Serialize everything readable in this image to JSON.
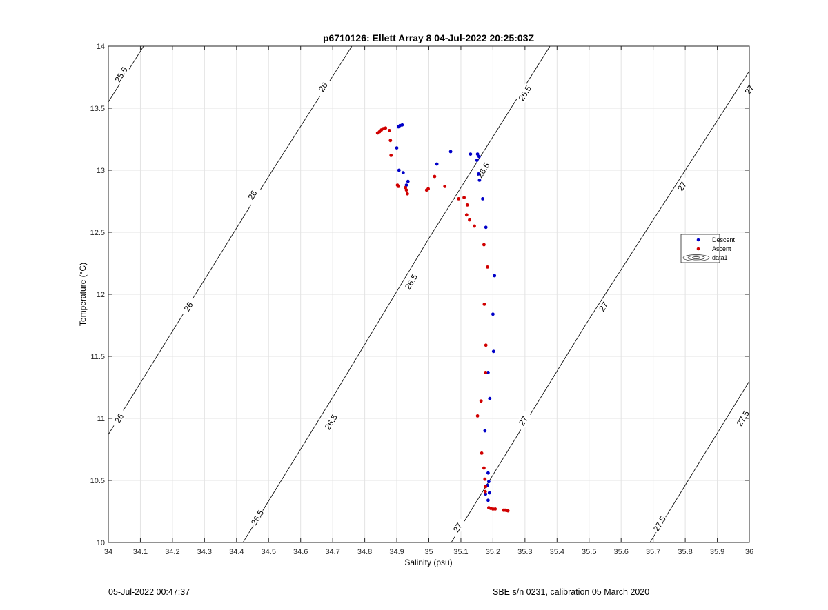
{
  "chart_data": {
    "type": "scatter",
    "title": "p6710126: Ellett Array 8 04-Jul-2022 20:25:03Z",
    "xlabel": "Salinity (psu)",
    "ylabel": "Temperature (°C)",
    "xlim": [
      34,
      36
    ],
    "ylim": [
      10,
      14
    ],
    "grid": true,
    "legend_position": "right",
    "x_ticks": [
      "34",
      "34.1",
      "34.2",
      "34.3",
      "34.4",
      "34.5",
      "34.6",
      "34.7",
      "34.8",
      "34.9",
      "35",
      "35.1",
      "35.2",
      "35.3",
      "35.4",
      "35.5",
      "35.6",
      "35.7",
      "35.8",
      "35.9",
      "36"
    ],
    "y_ticks": [
      "10",
      "10.5",
      "11",
      "11.5",
      "12",
      "12.5",
      "13",
      "13.5",
      "14"
    ],
    "series": [
      {
        "name": "Descent",
        "color": "#0000c8",
        "points": [
          [
            34.905,
            13.35
          ],
          [
            34.91,
            13.36
          ],
          [
            34.917,
            13.365
          ],
          [
            34.9,
            13.18
          ],
          [
            34.907,
            13.0
          ],
          [
            34.92,
            12.98
          ],
          [
            34.935,
            12.91
          ],
          [
            34.93,
            12.88
          ],
          [
            35.068,
            13.15
          ],
          [
            35.025,
            13.05
          ],
          [
            35.13,
            13.13
          ],
          [
            35.152,
            13.13
          ],
          [
            35.157,
            13.11
          ],
          [
            35.15,
            13.08
          ],
          [
            35.155,
            12.97
          ],
          [
            35.158,
            12.92
          ],
          [
            35.168,
            12.77
          ],
          [
            35.178,
            12.54
          ],
          [
            35.205,
            12.15
          ],
          [
            35.2,
            11.84
          ],
          [
            35.202,
            11.54
          ],
          [
            35.185,
            11.37
          ],
          [
            35.19,
            11.16
          ],
          [
            35.175,
            10.9
          ],
          [
            35.185,
            10.56
          ],
          [
            35.187,
            10.49
          ],
          [
            35.183,
            10.46
          ],
          [
            35.189,
            10.4
          ],
          [
            35.177,
            10.39
          ],
          [
            35.185,
            10.34
          ]
        ]
      },
      {
        "name": "Ascent",
        "color": "#d00000",
        "points": [
          [
            34.84,
            13.3
          ],
          [
            34.846,
            13.31
          ],
          [
            34.852,
            13.325
          ],
          [
            34.858,
            13.335
          ],
          [
            34.865,
            13.34
          ],
          [
            34.877,
            13.32
          ],
          [
            34.88,
            13.24
          ],
          [
            34.882,
            13.12
          ],
          [
            34.902,
            12.88
          ],
          [
            34.905,
            12.87
          ],
          [
            34.927,
            12.86
          ],
          [
            34.93,
            12.84
          ],
          [
            34.933,
            12.81
          ],
          [
            34.993,
            12.84
          ],
          [
            34.998,
            12.85
          ],
          [
            35.018,
            12.95
          ],
          [
            35.05,
            12.87
          ],
          [
            35.093,
            12.77
          ],
          [
            35.11,
            12.78
          ],
          [
            35.12,
            12.72
          ],
          [
            35.118,
            12.64
          ],
          [
            35.127,
            12.6
          ],
          [
            35.142,
            12.55
          ],
          [
            35.172,
            12.4
          ],
          [
            35.183,
            12.22
          ],
          [
            35.173,
            11.92
          ],
          [
            35.178,
            11.59
          ],
          [
            35.177,
            11.37
          ],
          [
            35.163,
            11.14
          ],
          [
            35.152,
            11.02
          ],
          [
            35.165,
            10.72
          ],
          [
            35.172,
            10.6
          ],
          [
            35.175,
            10.51
          ],
          [
            35.177,
            10.45
          ],
          [
            35.176,
            10.41
          ],
          [
            35.187,
            10.28
          ],
          [
            35.193,
            10.275
          ],
          [
            35.2,
            10.27
          ],
          [
            35.207,
            10.27
          ],
          [
            35.233,
            10.26
          ],
          [
            35.238,
            10.26
          ],
          [
            35.242,
            10.258
          ],
          [
            35.247,
            10.255
          ]
        ]
      }
    ],
    "contours": [
      {
        "label": "25.5",
        "points": [
          [
            34.0,
            13.55
          ],
          [
            34.11,
            14.0
          ]
        ],
        "label_positions": [
          [
            34.04,
            13.77
          ]
        ]
      },
      {
        "label": "26",
        "points": [
          [
            34.0,
            10.87
          ],
          [
            34.5,
            12.95
          ],
          [
            34.76,
            14.0
          ]
        ],
        "label_positions": [
          [
            34.034,
            11.0
          ],
          [
            34.25,
            11.9
          ],
          [
            34.45,
            12.8
          ],
          [
            34.67,
            13.67
          ]
        ]
      },
      {
        "label": "26.5",
        "points": [
          [
            34.42,
            10.0
          ],
          [
            34.7,
            11.17
          ],
          [
            35.0,
            12.45
          ],
          [
            35.378,
            14.0
          ]
        ],
        "label_positions": [
          [
            34.465,
            10.2
          ],
          [
            34.695,
            10.97
          ],
          [
            34.945,
            12.1
          ],
          [
            35.17,
            13.0
          ],
          [
            35.3,
            13.62
          ]
        ]
      },
      {
        "label": "27",
        "points": [
          [
            35.07,
            10.0
          ],
          [
            35.5,
            11.8
          ],
          [
            36.0,
            13.8
          ]
        ],
        "label_positions": [
          [
            35.09,
            10.12
          ],
          [
            35.295,
            10.98
          ],
          [
            35.545,
            11.9
          ],
          [
            35.79,
            12.87
          ],
          [
            36.0,
            13.65
          ]
        ]
      },
      {
        "label": "27.5",
        "points": [
          [
            35.69,
            10.0
          ],
          [
            36.0,
            11.3
          ]
        ],
        "label_positions": [
          [
            35.72,
            10.15
          ],
          [
            35.98,
            11.0
          ]
        ]
      }
    ],
    "legend": [
      {
        "label": "Descent",
        "marker": "dot",
        "color": "#0000c8"
      },
      {
        "label": "Ascent",
        "marker": "dot",
        "color": "#d00000"
      },
      {
        "label": "data1",
        "marker": "contour"
      }
    ]
  },
  "footer": {
    "left": "05-Jul-2022 00:47:37",
    "right": "SBE s/n 0231, calibration 05 March 2020"
  }
}
